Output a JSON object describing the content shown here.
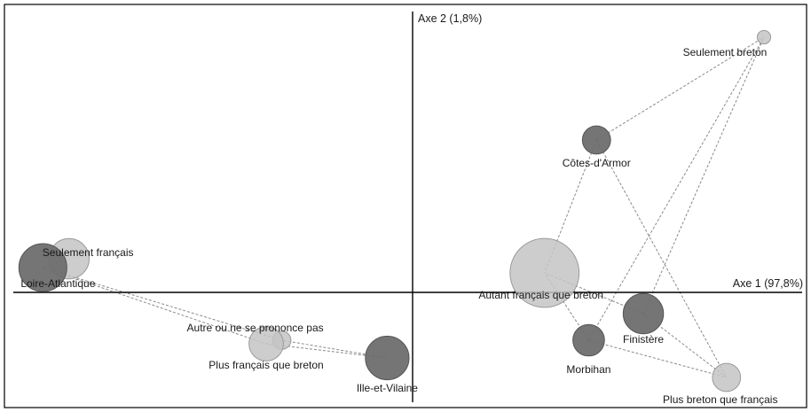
{
  "chart_data": {
    "type": "scatter",
    "title": "",
    "xlabel": "Axe 1 (97,8%)",
    "ylabel": "Axe 2 (1,8%)",
    "xlim": [
      -1.0,
      1.0
    ],
    "ylim": [
      -0.7,
      1.64
    ],
    "grid": false,
    "legend": "none",
    "colors": {
      "department": "#6e6e6e",
      "language": "#c4c4c4",
      "edge": "#555555",
      "link": "#8a8a8a",
      "axis": "#000000",
      "frame": "#000000"
    },
    "series": [
      {
        "group": "department",
        "points": [
          {
            "label": "Loire-Atlantique",
            "x": -0.947,
            "y": 0.14,
            "size": 1.0
          },
          {
            "label": "Ille-et-Vilaine",
            "x": -0.065,
            "y": -0.37,
            "size": 0.91
          },
          {
            "label": "Côtes-d'Armor",
            "x": 0.471,
            "y": 0.86,
            "size": 0.59
          },
          {
            "label": "Finistère",
            "x": 0.591,
            "y": -0.12,
            "size": 0.84
          },
          {
            "label": "Morbihan",
            "x": 0.451,
            "y": -0.27,
            "size": 0.66
          }
        ]
      },
      {
        "group": "language",
        "points": [
          {
            "label": "Seulement français",
            "x": -0.88,
            "y": 0.19,
            "size": 0.84
          },
          {
            "label": "Autre ou ne se pronce pas",
            "x": -0.335,
            "y": -0.27,
            "size": 0.38
          },
          {
            "label": "Plus français que breton",
            "x": -0.375,
            "y": -0.29,
            "size": 0.72
          },
          {
            "label": "Autant français que breton",
            "x": 0.338,
            "y": 0.11,
            "size": 1.44
          },
          {
            "label": "Plus breton que français",
            "x": 0.804,
            "y": -0.48,
            "size": 0.59
          },
          {
            "label": "Seulement breton",
            "x": 0.9,
            "y": 1.44,
            "size": 0.28
          }
        ]
      }
    ],
    "links": [
      [
        "Loire-Atlantique",
        "Seulement français"
      ],
      [
        "Loire-Atlantique",
        "Plus français que breton"
      ],
      [
        "Loire-Atlantique",
        "Autre ou ne se pronce pas"
      ],
      [
        "Ille-et-Vilaine",
        "Plus français que breton"
      ],
      [
        "Ille-et-Vilaine",
        "Autre ou ne se pronce pas"
      ],
      [
        "Côtes-d'Armor",
        "Seulement breton"
      ],
      [
        "Côtes-d'Armor",
        "Autant français que breton"
      ],
      [
        "Côtes-d'Armor",
        "Plus breton que français"
      ],
      [
        "Finistère",
        "Seulement breton"
      ],
      [
        "Finistère",
        "Autant français que breton"
      ],
      [
        "Finistère",
        "Plus breton que français"
      ],
      [
        "Morbihan",
        "Seulement breton"
      ],
      [
        "Morbihan",
        "Autant français que breton"
      ],
      [
        "Morbihan",
        "Plus breton que français"
      ]
    ],
    "labels": {
      "Loire-Atlantique": "Loire-Atlantique",
      "Ille-et-Vilaine": "Ille-et-Vilaine",
      "Côtes-d'Armor": "Côtes-d'Armor",
      "Finistère": "Finistère",
      "Morbihan": "Morbihan",
      "Seulement français": "Seulement français",
      "Autre ou ne se pronce pas": "Autre ou ne se prononce pas",
      "Plus français que breton": "Plus français que breton",
      "Autant français que breton": "Autant français que breton",
      "Plus breton que français": "Plus breton que français",
      "Seulement breton": "Seulement breton"
    }
  }
}
